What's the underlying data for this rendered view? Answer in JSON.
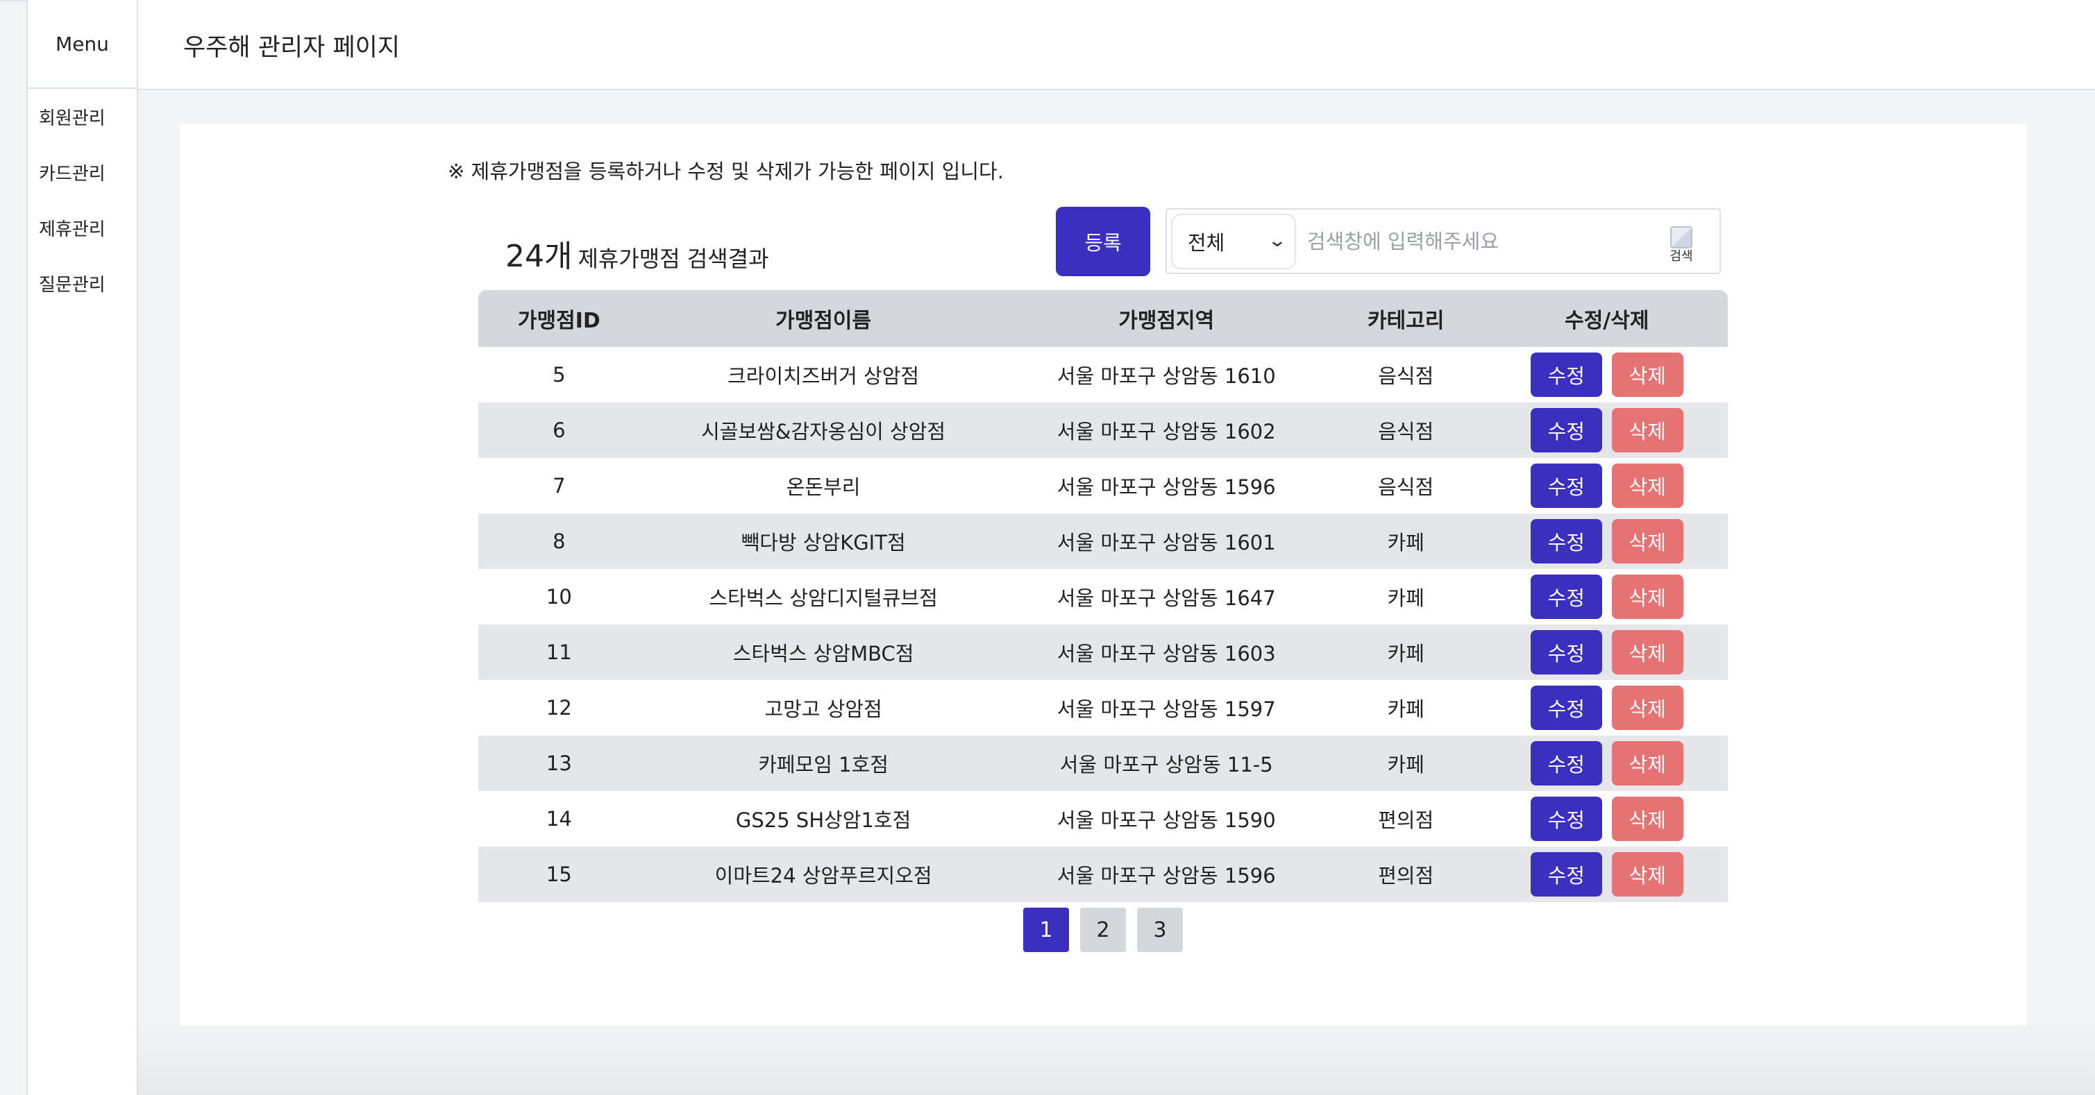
{
  "app": {
    "title": "우주해 관리자 페이지"
  },
  "sidebar": {
    "header": "Menu",
    "items": [
      {
        "label": "회원관리"
      },
      {
        "label": "카드관리"
      },
      {
        "label": "제휴관리"
      },
      {
        "label": "질문관리"
      }
    ]
  },
  "main": {
    "notice": "※ 제휴가맹점을 등록하거나 수정 및 삭제가 가능한 페이지 입니다.",
    "result_count": "24개",
    "result_label": "제휴가맹점 검색결과",
    "register_button": "등록",
    "search": {
      "category_selected": "전체",
      "placeholder": "검색창에 입력해주세요",
      "value": "",
      "button_alt": "검색"
    },
    "table": {
      "columns": [
        "가맹점ID",
        "가맹점이름",
        "가맹점지역",
        "카테고리",
        "수정/삭제"
      ],
      "edit_label": "수정",
      "delete_label": "삭제",
      "rows": [
        {
          "id": "5",
          "name": "크라이치즈버거 상암점",
          "region": "서울 마포구 상암동 1610",
          "category": "음식점"
        },
        {
          "id": "6",
          "name": "시골보쌈&감자옹심이 상암점",
          "region": "서울 마포구 상암동 1602",
          "category": "음식점"
        },
        {
          "id": "7",
          "name": "온돈부리",
          "region": "서울 마포구 상암동 1596",
          "category": "음식점"
        },
        {
          "id": "8",
          "name": "빽다방 상암KGIT점",
          "region": "서울 마포구 상암동 1601",
          "category": "카페"
        },
        {
          "id": "10",
          "name": "스타벅스 상암디지털큐브점",
          "region": "서울 마포구 상암동 1647",
          "category": "카페"
        },
        {
          "id": "11",
          "name": "스타벅스 상암MBC점",
          "region": "서울 마포구 상암동 1603",
          "category": "카페"
        },
        {
          "id": "12",
          "name": "고망고 상암점",
          "region": "서울 마포구 상암동 1597",
          "category": "카페"
        },
        {
          "id": "13",
          "name": "카페모임 1호점",
          "region": "서울 마포구 상암동 11-5",
          "category": "카페"
        },
        {
          "id": "14",
          "name": "GS25 SH상암1호점",
          "region": "서울 마포구 상암동 1590",
          "category": "편의점"
        },
        {
          "id": "15",
          "name": "이마트24 상암푸르지오점",
          "region": "서울 마포구 상암동 1596",
          "category": "편의점"
        }
      ]
    },
    "pagination": {
      "pages": [
        "1",
        "2",
        "3"
      ],
      "current": "1"
    }
  },
  "colors": {
    "primary": "#3a2fbf",
    "danger": "#e57373",
    "header_row": "#d4d7dc",
    "alt_row": "#e4e6ea"
  }
}
